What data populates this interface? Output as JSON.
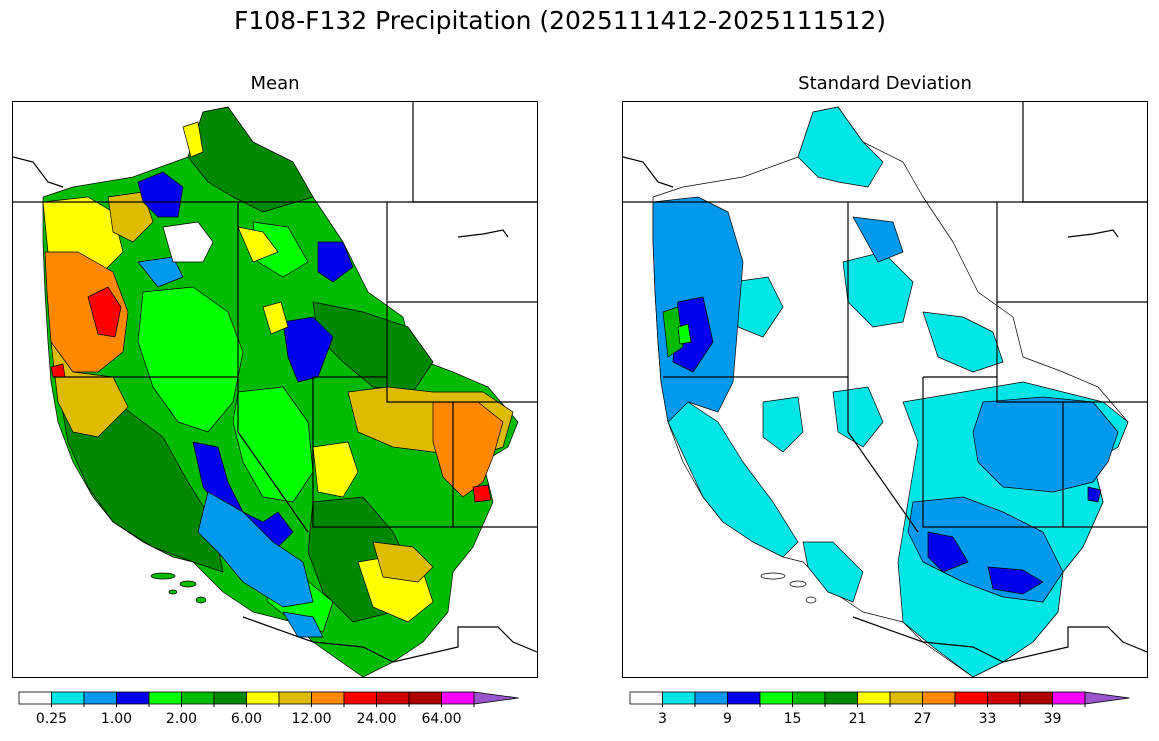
{
  "figure": {
    "title": "F108-F132 Precipitation (2025111412-2025111512)"
  },
  "panels": [
    {
      "title": "Mean",
      "colorbar": {
        "colors": [
          "#ffffff",
          "#00e5e5",
          "#0099ee",
          "#0000ee",
          "#00ff00",
          "#00bb00",
          "#008800",
          "#ffff00",
          "#ddbb00",
          "#ff8800",
          "#ff0000",
          "#cc0000",
          "#aa0000",
          "#ff00ff",
          "#9955cc"
        ],
        "tick_labels": [
          "0.25",
          "1.00",
          "2.00",
          "6.00",
          "12.00",
          "24.00",
          "64.00"
        ],
        "extend": "max"
      }
    },
    {
      "title": "Standard Deviation",
      "colorbar": {
        "colors": [
          "#ffffff",
          "#00e5e5",
          "#0099ee",
          "#0000ee",
          "#00ff00",
          "#00bb00",
          "#008800",
          "#ffff00",
          "#ddbb00",
          "#ff8800",
          "#ff0000",
          "#cc0000",
          "#aa0000",
          "#ff00ff",
          "#9955cc"
        ],
        "tick_labels": [
          "3",
          "9",
          "15",
          "21",
          "27",
          "33",
          "39"
        ],
        "extend": "max"
      }
    }
  ]
}
